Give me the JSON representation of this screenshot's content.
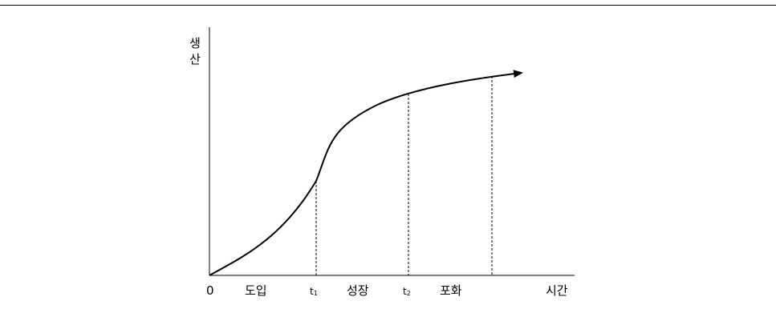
{
  "diagram": {
    "y_axis_label_chars": [
      "생",
      "산"
    ],
    "x_axis_label": "시간",
    "origin_label": "0",
    "phases": [
      {
        "label": "도입"
      },
      {
        "label": "성장"
      },
      {
        "label": "포화"
      }
    ],
    "boundaries": [
      {
        "base": "t",
        "sub": "1"
      },
      {
        "base": "t",
        "sub": "2"
      }
    ],
    "line_color": "#000000"
  }
}
